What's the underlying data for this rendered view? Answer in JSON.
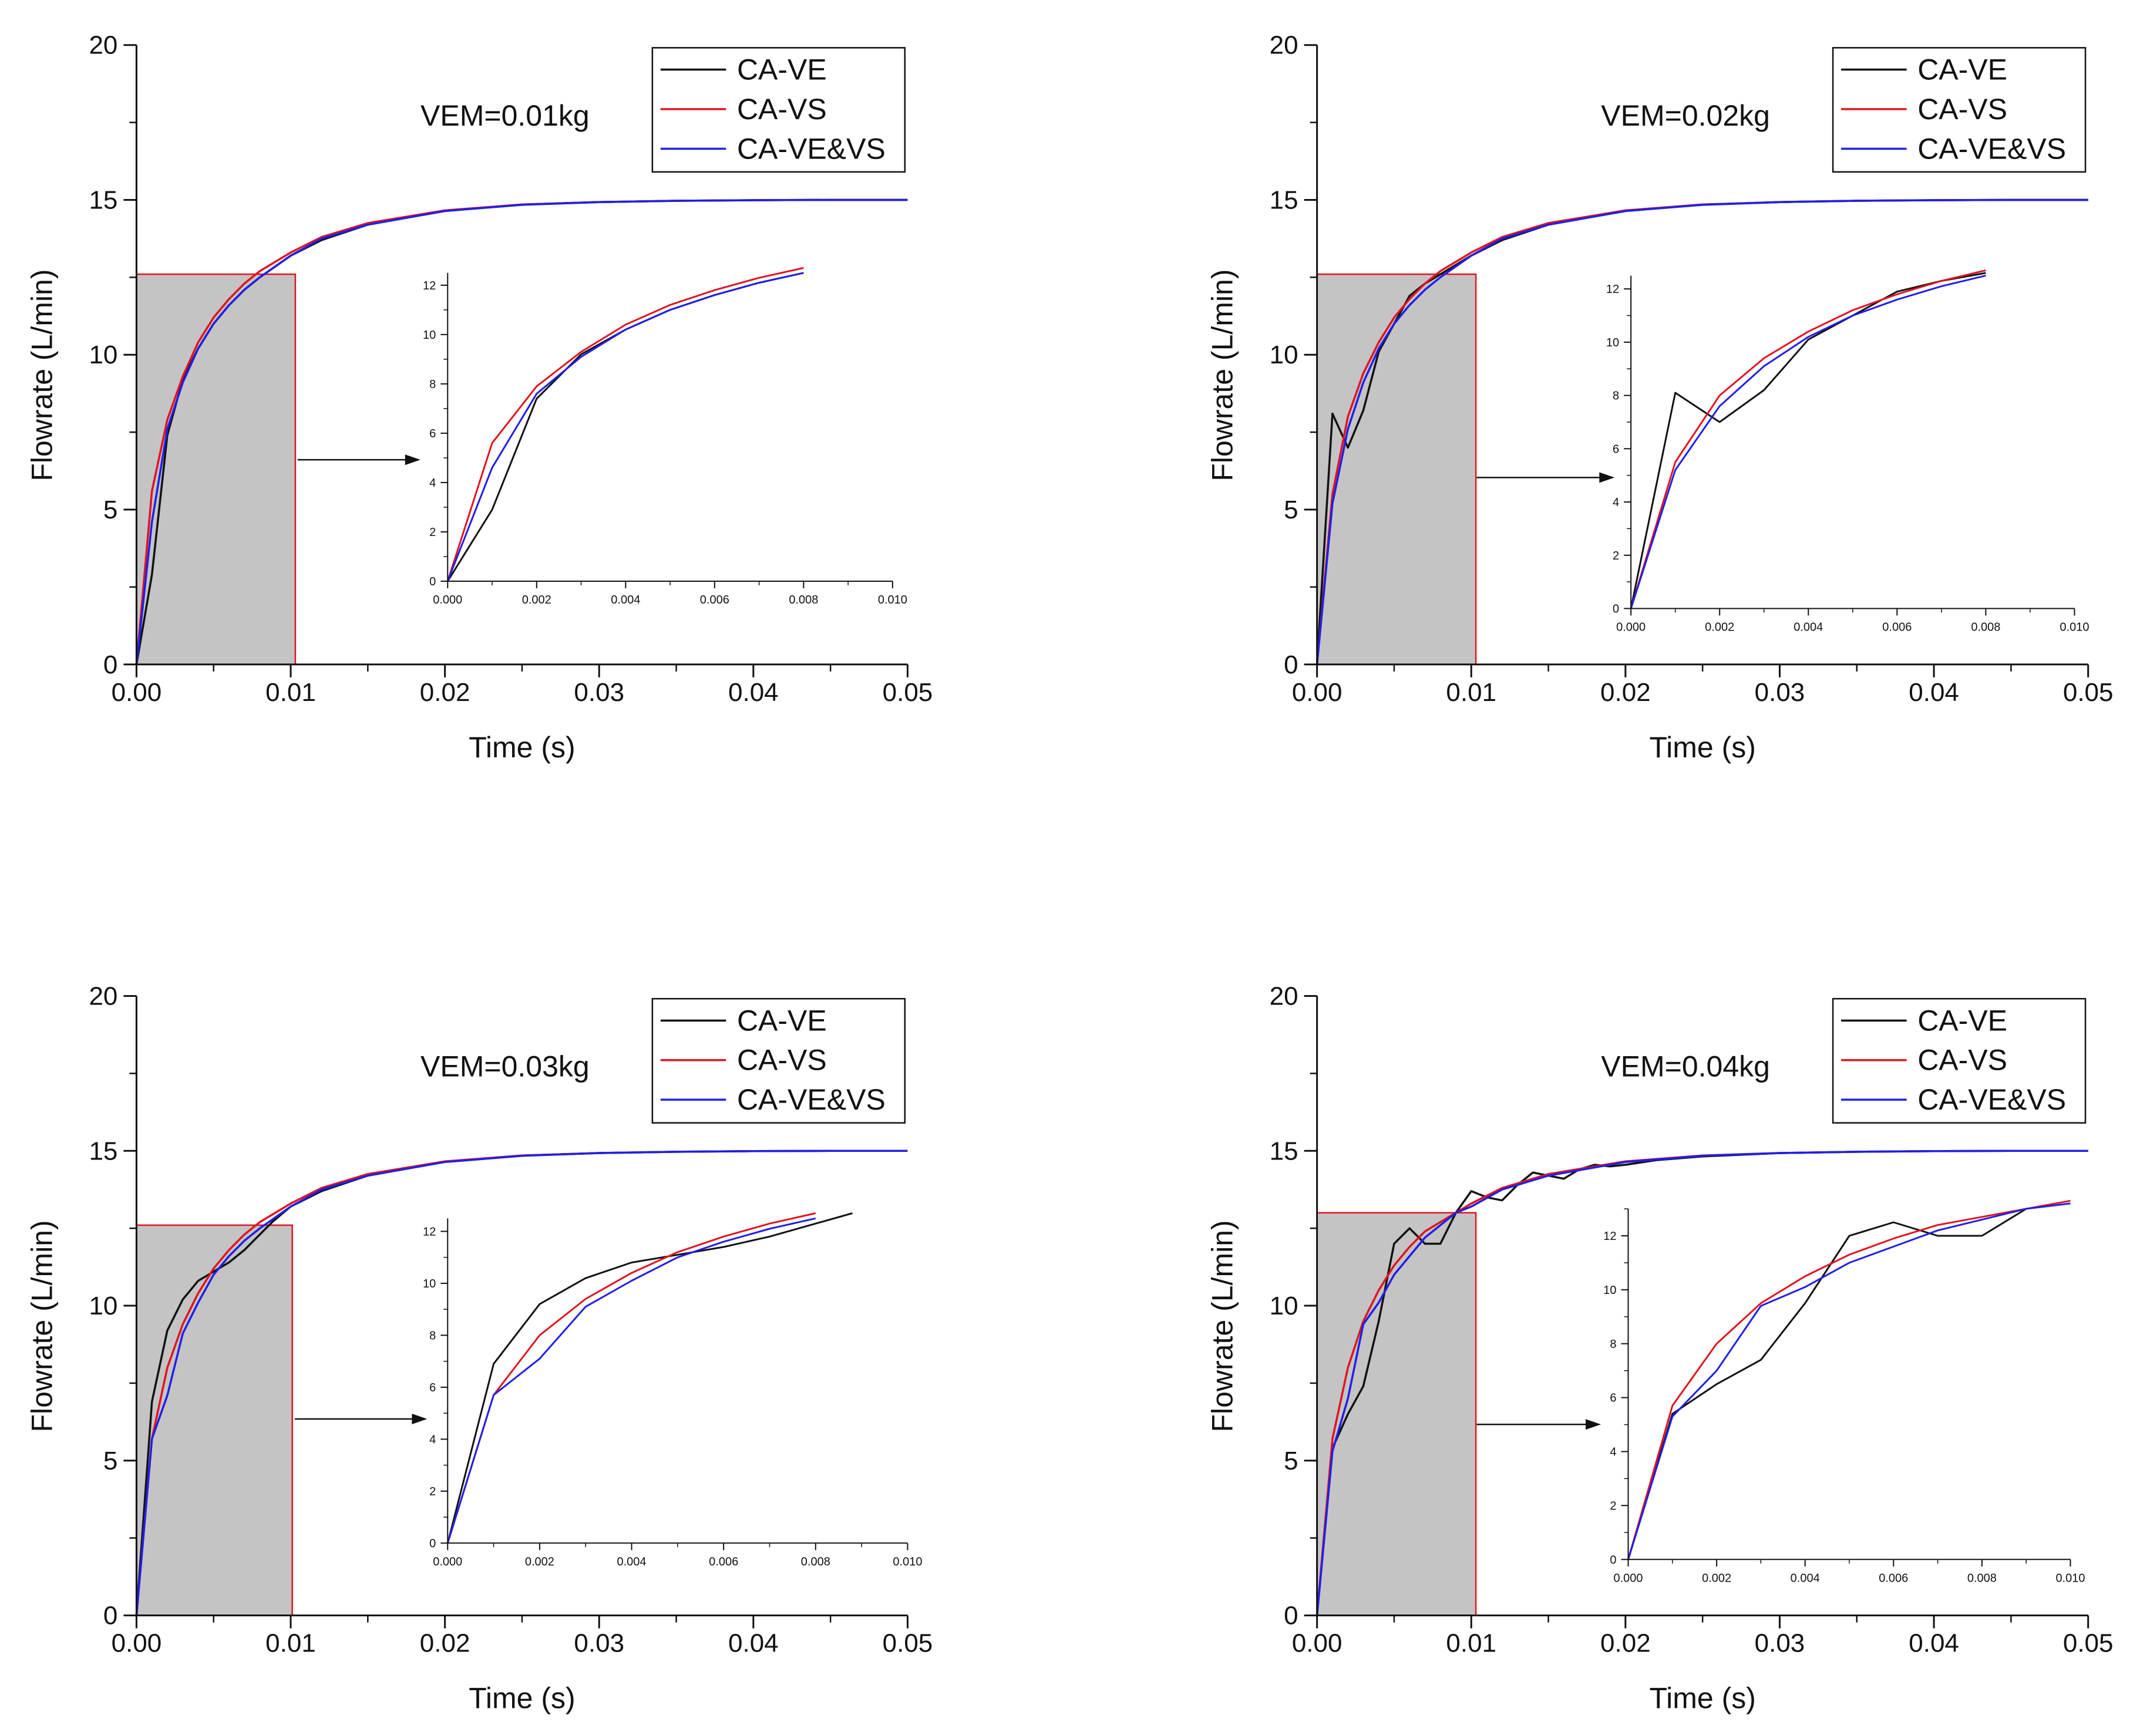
{
  "colors": {
    "ca_ve": "#111111",
    "ca_vs": "#e0141e",
    "ca_ve_vs": "#1f1fe8",
    "zoom_fill": "#c4c4c4",
    "zoom_border": "#e0141e"
  },
  "chart_data": [
    {
      "type": "line",
      "annotation": "VEM=0.01kg",
      "xlabel": "Time (s)",
      "ylabel": "Flowrate (L/min)",
      "xlim": [
        0,
        0.05
      ],
      "ylim": [
        0,
        20
      ],
      "xticks": [
        "0.00",
        "0.01",
        "0.02",
        "0.03",
        "0.04",
        "0.05"
      ],
      "yticks": [
        "0",
        "5",
        "10",
        "15",
        "20"
      ],
      "legend": [
        "CA-VE",
        "CA-VS",
        "CA-VE&VS"
      ],
      "legend_position": "top-right",
      "zoom_region": {
        "x": [
          0,
          0.0103
        ],
        "y": [
          0,
          12.6
        ]
      },
      "inset": {
        "xlim": [
          0,
          0.01
        ],
        "ylim": [
          0,
          12.5
        ],
        "xticks": [
          "0.000",
          "0.002",
          "0.004",
          "0.006",
          "0.008",
          "0.010"
        ],
        "yticks": [
          "0",
          "2",
          "4",
          "6",
          "8",
          "10",
          "12"
        ]
      },
      "series": [
        {
          "name": "CA-VE",
          "x": [
            0,
            0.001,
            0.002,
            0.003,
            0.004,
            0.005,
            0.006,
            0.007,
            0.008,
            0.01,
            0.012,
            0.015,
            0.02,
            0.025,
            0.03,
            0.035,
            0.04,
            0.045,
            0.05
          ],
          "y": [
            0,
            2.9,
            7.4,
            9.2,
            10.2,
            11.0,
            11.6,
            12.1,
            12.5,
            13.2,
            13.7,
            14.2,
            14.65,
            14.85,
            14.93,
            14.97,
            14.99,
            15.0,
            15.0
          ]
        },
        {
          "name": "CA-VS",
          "x": [
            0,
            0.001,
            0.002,
            0.003,
            0.004,
            0.005,
            0.006,
            0.007,
            0.008,
            0.01,
            0.012,
            0.015,
            0.02,
            0.025,
            0.03,
            0.035,
            0.04,
            0.045,
            0.05
          ],
          "y": [
            0,
            5.6,
            7.9,
            9.3,
            10.4,
            11.2,
            11.8,
            12.3,
            12.7,
            13.3,
            13.8,
            14.25,
            14.66,
            14.85,
            14.93,
            14.97,
            14.99,
            15.0,
            15.0
          ]
        },
        {
          "name": "CA-VE&VS",
          "x": [
            0,
            0.001,
            0.002,
            0.003,
            0.004,
            0.005,
            0.006,
            0.007,
            0.008,
            0.01,
            0.012,
            0.015,
            0.02,
            0.025,
            0.03,
            0.035,
            0.04,
            0.045,
            0.05
          ],
          "y": [
            0,
            4.6,
            7.6,
            9.1,
            10.2,
            11.0,
            11.6,
            12.1,
            12.5,
            13.2,
            13.75,
            14.2,
            14.64,
            14.84,
            14.93,
            14.97,
            14.99,
            15.0,
            15.0
          ]
        }
      ]
    },
    {
      "type": "line",
      "annotation": "VEM=0.02kg",
      "xlabel": "Time (s)",
      "ylabel": "Flowrate (L/min)",
      "xlim": [
        0,
        0.05
      ],
      "ylim": [
        0,
        20
      ],
      "xticks": [
        "0.00",
        "0.01",
        "0.02",
        "0.03",
        "0.04",
        "0.05"
      ],
      "yticks": [
        "0",
        "5",
        "10",
        "15",
        "20"
      ],
      "legend": [
        "CA-VE",
        "CA-VS",
        "CA-VE&VS"
      ],
      "legend_position": "top-right",
      "zoom_region": {
        "x": [
          0,
          0.0103
        ],
        "y": [
          0,
          12.6
        ]
      },
      "inset": {
        "xlim": [
          0,
          0.01
        ],
        "ylim": [
          0,
          12.5
        ],
        "xticks": [
          "0.000",
          "0.002",
          "0.004",
          "0.006",
          "0.008",
          "0.010"
        ],
        "yticks": [
          "0",
          "2",
          "4",
          "6",
          "8",
          "10",
          "12"
        ]
      },
      "series": [
        {
          "name": "CA-VE",
          "x": [
            0,
            0.001,
            0.002,
            0.003,
            0.004,
            0.005,
            0.006,
            0.007,
            0.008,
            0.01,
            0.012,
            0.015,
            0.02,
            0.025,
            0.03,
            0.035,
            0.04,
            0.045,
            0.05
          ],
          "y": [
            0,
            8.1,
            7.0,
            8.2,
            10.1,
            11.0,
            11.9,
            12.3,
            12.6,
            13.2,
            13.7,
            14.2,
            14.65,
            14.85,
            14.93,
            14.97,
            14.99,
            15.0,
            15.0
          ]
        },
        {
          "name": "CA-VS",
          "x": [
            0,
            0.001,
            0.002,
            0.003,
            0.004,
            0.005,
            0.006,
            0.007,
            0.008,
            0.01,
            0.012,
            0.015,
            0.02,
            0.025,
            0.03,
            0.035,
            0.04,
            0.045,
            0.05
          ],
          "y": [
            0,
            5.5,
            8.0,
            9.4,
            10.4,
            11.2,
            11.8,
            12.3,
            12.7,
            13.3,
            13.8,
            14.25,
            14.66,
            14.85,
            14.93,
            14.97,
            14.99,
            15.0,
            15.0
          ]
        },
        {
          "name": "CA-VE&VS",
          "x": [
            0,
            0.001,
            0.002,
            0.003,
            0.004,
            0.005,
            0.006,
            0.007,
            0.008,
            0.01,
            0.012,
            0.015,
            0.02,
            0.025,
            0.03,
            0.035,
            0.04,
            0.045,
            0.05
          ],
          "y": [
            0,
            5.2,
            7.6,
            9.1,
            10.2,
            11.0,
            11.6,
            12.1,
            12.5,
            13.2,
            13.75,
            14.2,
            14.64,
            14.84,
            14.93,
            14.97,
            14.99,
            15.0,
            15.0
          ]
        }
      ]
    },
    {
      "type": "line",
      "annotation": "VEM=0.03kg",
      "xlabel": "Time (s)",
      "ylabel": "Flowrate (L/min)",
      "xlim": [
        0,
        0.05
      ],
      "ylim": [
        0,
        20
      ],
      "xticks": [
        "0.00",
        "0.01",
        "0.02",
        "0.03",
        "0.04",
        "0.05"
      ],
      "yticks": [
        "0",
        "5",
        "10",
        "15",
        "20"
      ],
      "legend": [
        "CA-VE",
        "CA-VS",
        "CA-VE&VS"
      ],
      "legend_position": "top-right",
      "zoom_region": {
        "x": [
          0,
          0.0101
        ],
        "y": [
          0,
          12.6
        ]
      },
      "inset": {
        "xlim": [
          0,
          0.01
        ],
        "ylim": [
          0,
          12.5
        ],
        "xticks": [
          "0.000",
          "0.002",
          "0.004",
          "0.006",
          "0.008",
          "0.010"
        ],
        "yticks": [
          "0",
          "2",
          "4",
          "6",
          "8",
          "10",
          "12"
        ]
      },
      "series": [
        {
          "name": "CA-VE",
          "x": [
            0,
            0.001,
            0.002,
            0.003,
            0.004,
            0.005,
            0.006,
            0.007,
            0.008,
            0.0088,
            0.01,
            0.012,
            0.015,
            0.02,
            0.025,
            0.03,
            0.035,
            0.04,
            0.045,
            0.05
          ],
          "y": [
            0,
            6.9,
            9.2,
            10.2,
            10.8,
            11.1,
            11.4,
            11.8,
            12.3,
            12.7,
            13.2,
            13.7,
            14.2,
            14.65,
            14.85,
            14.93,
            14.97,
            14.99,
            15.0,
            15.0
          ]
        },
        {
          "name": "CA-VS",
          "x": [
            0,
            0.001,
            0.002,
            0.003,
            0.004,
            0.005,
            0.006,
            0.007,
            0.008,
            0.01,
            0.012,
            0.015,
            0.02,
            0.025,
            0.03,
            0.035,
            0.04,
            0.045,
            0.05
          ],
          "y": [
            0,
            5.7,
            8.0,
            9.4,
            10.4,
            11.2,
            11.8,
            12.3,
            12.7,
            13.3,
            13.8,
            14.25,
            14.66,
            14.85,
            14.93,
            14.97,
            14.99,
            15.0,
            15.0
          ]
        },
        {
          "name": "CA-VE&VS",
          "x": [
            0,
            0.001,
            0.002,
            0.003,
            0.004,
            0.005,
            0.006,
            0.007,
            0.008,
            0.01,
            0.012,
            0.015,
            0.02,
            0.025,
            0.03,
            0.035,
            0.04,
            0.045,
            0.05
          ],
          "y": [
            0,
            5.7,
            7.1,
            9.1,
            10.1,
            11.0,
            11.6,
            12.1,
            12.5,
            13.2,
            13.75,
            14.2,
            14.64,
            14.84,
            14.93,
            14.97,
            14.99,
            15.0,
            15.0
          ]
        }
      ]
    },
    {
      "type": "line",
      "annotation": "VEM=0.04kg",
      "xlabel": "Time (s)",
      "ylabel": "Flowrate (L/min)",
      "xlim": [
        0,
        0.05
      ],
      "ylim": [
        0,
        20
      ],
      "xticks": [
        "0.00",
        "0.01",
        "0.02",
        "0.03",
        "0.04",
        "0.05"
      ],
      "yticks": [
        "0",
        "5",
        "10",
        "15",
        "20"
      ],
      "legend": [
        "CA-VE",
        "CA-VS",
        "CA-VE&VS"
      ],
      "legend_position": "top-right",
      "zoom_region": {
        "x": [
          0,
          0.0103
        ],
        "y": [
          0,
          13.0
        ]
      },
      "inset": {
        "xlim": [
          0,
          0.01
        ],
        "ylim": [
          0,
          13
        ],
        "xticks": [
          "0.000",
          "0.002",
          "0.004",
          "0.006",
          "0.008",
          "0.010"
        ],
        "yticks": [
          "0",
          "2",
          "4",
          "6",
          "8",
          "10",
          "12"
        ]
      },
      "series": [
        {
          "name": "CA-VE",
          "x": [
            0,
            0.001,
            0.002,
            0.003,
            0.004,
            0.005,
            0.006,
            0.007,
            0.008,
            0.009,
            0.01,
            0.011,
            0.012,
            0.013,
            0.014,
            0.015,
            0.016,
            0.017,
            0.018,
            0.019,
            0.02,
            0.022,
            0.025,
            0.03,
            0.035,
            0.04,
            0.045,
            0.05
          ],
          "y": [
            0,
            5.4,
            6.5,
            7.4,
            9.5,
            12.0,
            12.5,
            12.0,
            12.0,
            13.0,
            13.7,
            13.5,
            13.4,
            13.9,
            14.3,
            14.2,
            14.1,
            14.4,
            14.55,
            14.5,
            14.55,
            14.7,
            14.82,
            14.93,
            14.97,
            14.99,
            15.0,
            15.0
          ]
        },
        {
          "name": "CA-VS",
          "x": [
            0,
            0.001,
            0.002,
            0.003,
            0.004,
            0.005,
            0.006,
            0.007,
            0.008,
            0.009,
            0.01,
            0.012,
            0.015,
            0.02,
            0.025,
            0.03,
            0.035,
            0.04,
            0.045,
            0.05
          ],
          "y": [
            0,
            5.7,
            8.0,
            9.5,
            10.5,
            11.3,
            11.9,
            12.4,
            12.7,
            13.0,
            13.3,
            13.8,
            14.25,
            14.66,
            14.85,
            14.93,
            14.97,
            14.99,
            15.0,
            15.0
          ]
        },
        {
          "name": "CA-VE&VS",
          "x": [
            0,
            0.001,
            0.002,
            0.003,
            0.004,
            0.005,
            0.006,
            0.007,
            0.008,
            0.009,
            0.01,
            0.012,
            0.015,
            0.02,
            0.025,
            0.03,
            0.035,
            0.04,
            0.045,
            0.05
          ],
          "y": [
            0,
            5.3,
            7.0,
            9.4,
            10.1,
            11.0,
            11.6,
            12.2,
            12.6,
            13.0,
            13.2,
            13.75,
            14.2,
            14.64,
            14.84,
            14.93,
            14.97,
            14.99,
            15.0,
            15.0
          ]
        }
      ]
    }
  ]
}
